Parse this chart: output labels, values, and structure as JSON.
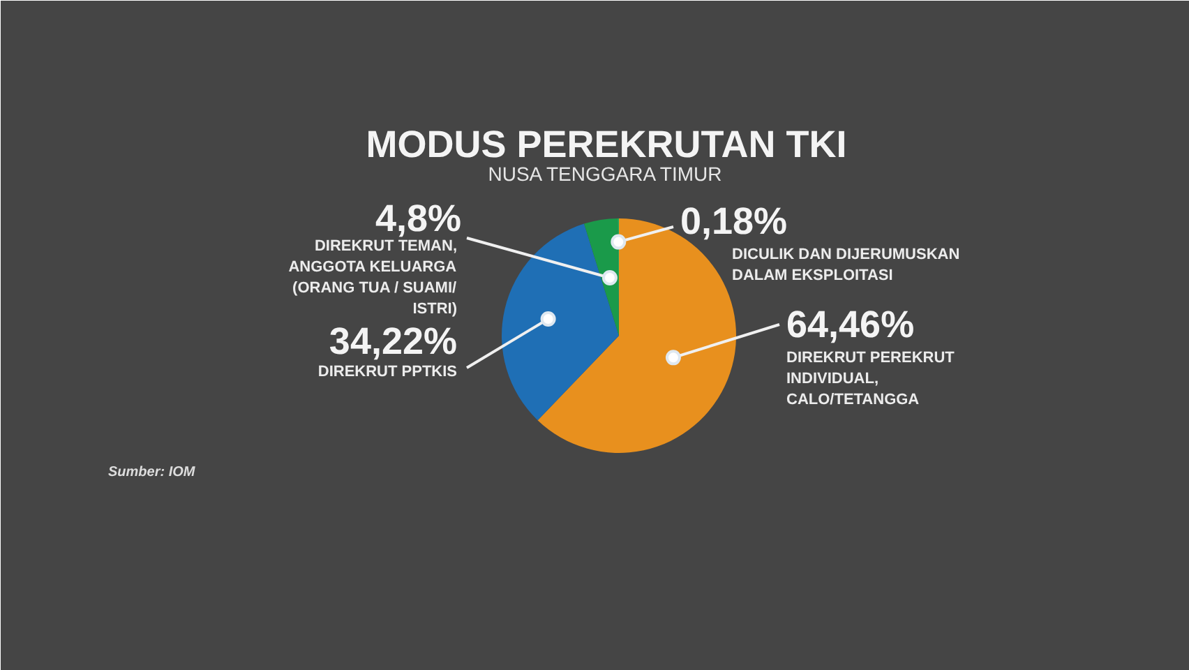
{
  "chart_data": {
    "type": "pie",
    "title": "MODUS PEREKRUTAN TKI",
    "subtitle": "NUSA TENGGARA TIMUR",
    "categories": [
      "DIREKRUT PEREKRUT INDIVIDUAL, CALO/TETANGGA",
      "DIREKRUT PPTKIS",
      "DIREKRUT TEMAN, ANGGOTA KELUARGA (ORANG TUA / SUAMI/ ISTRI)",
      "DICULIK DAN DIJERUMUSKAN DALAM EKSPLOITASI"
    ],
    "values": [
      64.46,
      34.22,
      4.8,
      0.18
    ],
    "value_labels": [
      "64,46%",
      "34,22%",
      "4,8%",
      "0,18%"
    ],
    "colors": [
      "#e8901e",
      "#1f6fb5",
      "#1a9a4a",
      "#23a85a"
    ],
    "annotations": [
      "Sumber: IOM"
    ]
  }
}
